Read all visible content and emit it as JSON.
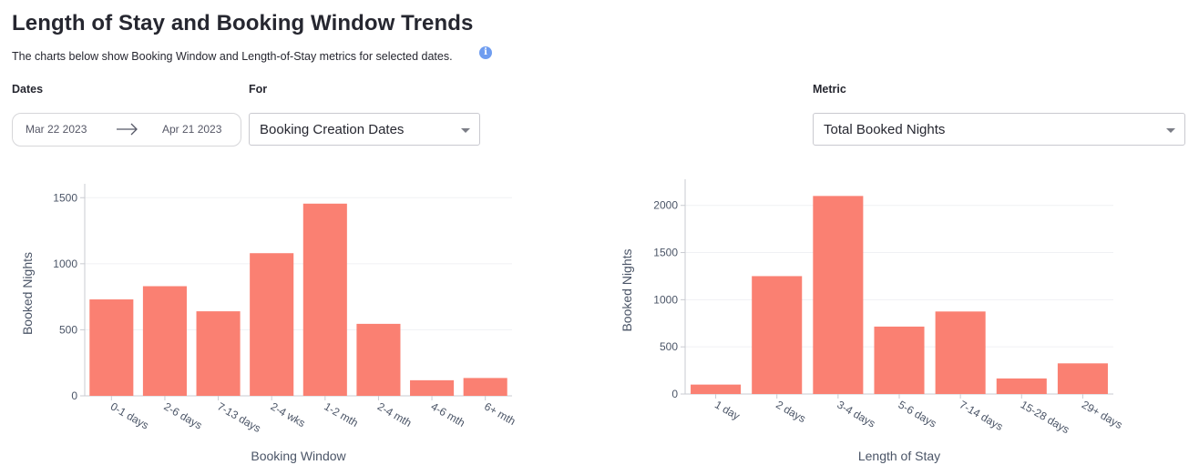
{
  "header": {
    "title": "Length of Stay and Booking Window Trends",
    "subtitle": "The charts below show Booking Window and Length-of-Stay metrics for selected dates.",
    "info_icon": "info-icon"
  },
  "filters": {
    "dates_label": "Dates",
    "date_start": "Mar 22 2023",
    "date_end": "Apr 21 2023",
    "for_label": "For",
    "for_value": "Booking Creation Dates",
    "metric_label": "Metric",
    "metric_value": "Total Booked Nights"
  },
  "colors": {
    "bar": "#fa8072",
    "axis": "#c9cbd1",
    "grid": "#f0f1f4",
    "text": "#4b5567"
  },
  "chart_data": [
    {
      "type": "bar",
      "title": "",
      "xlabel": "Booking Window",
      "ylabel": "Booked Nights",
      "categories": [
        "0-1 days",
        "2-6 days",
        "7-13 days",
        "2-4 wks",
        "1-2 mth",
        "2-4 mth",
        "4-6 mth",
        "6+ mth"
      ],
      "values": [
        730,
        830,
        640,
        1080,
        1455,
        545,
        118,
        135
      ],
      "ylim": [
        0,
        1550
      ],
      "yticks": [
        0,
        500,
        1000,
        1500
      ],
      "grid": true
    },
    {
      "type": "bar",
      "title": "",
      "xlabel": "Length of Stay",
      "ylabel": "Booked Nights",
      "categories": [
        "1 day",
        "2 days",
        "3-4 days",
        "5-6 days",
        "7-14 days",
        "15-28 days",
        "29+ days"
      ],
      "values": [
        100,
        1250,
        2100,
        715,
        875,
        165,
        325
      ],
      "ylim": [
        0,
        2200
      ],
      "yticks": [
        0,
        500,
        1000,
        1500,
        2000
      ],
      "grid": true
    }
  ]
}
